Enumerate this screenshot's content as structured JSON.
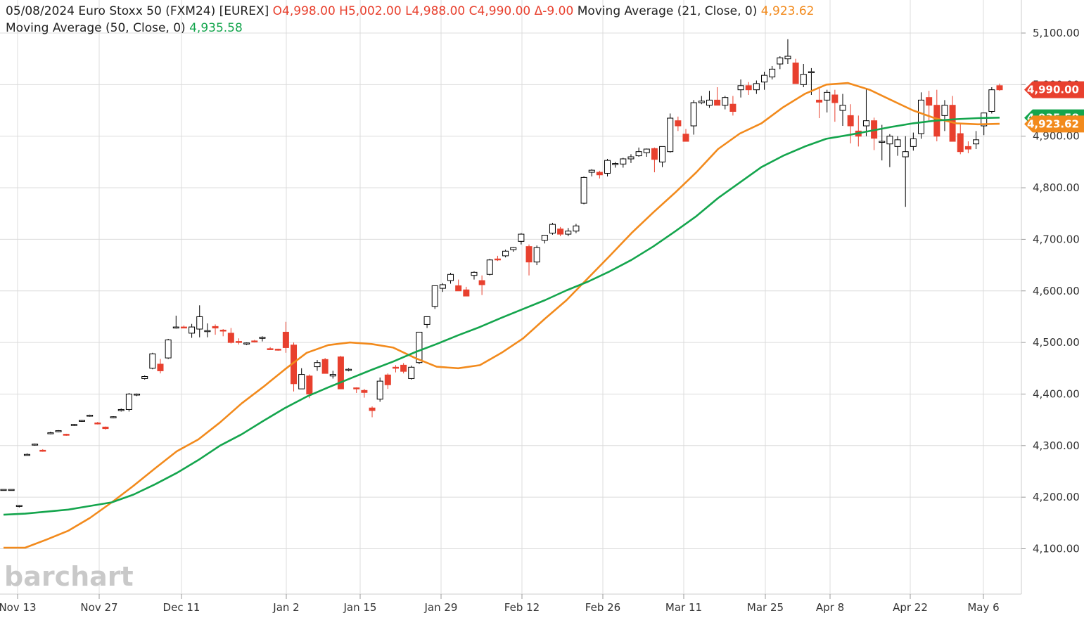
{
  "header": {
    "date": "05/08/2024",
    "instrument": "Euro Stoxx 50 (FXM24) [EUREX]",
    "open": "O4,998.00",
    "high": "H5,002.00",
    "low": "L4,988.00",
    "close": "C4,990.00",
    "change": "Δ-9.00",
    "ma21_label": "Moving Average  (21, Close, 0)",
    "ma21_value": "4,923.62",
    "ma50_label": "Moving Average  (50, Close, 0)",
    "ma50_value": "4,935.58"
  },
  "logo": "barchart",
  "colors": {
    "up_fill": "#ffffff",
    "up_outline": "#000000",
    "down_fill": "#e8402e",
    "ma21": "#f28a1c",
    "ma50": "#14a54d",
    "grid": "#dcdcdc"
  },
  "price_tags": {
    "last": "4,990.00",
    "ma21": "4,923.62",
    "ma50": "4,935.58"
  },
  "chart_data": {
    "type": "candlestick",
    "title": "Euro Stoxx 50 (FXM24) [EUREX]",
    "x_tick_labels": [
      "Nov 13",
      "Nov 27",
      "Dec 11",
      "Jan 2",
      "Jan 15",
      "Jan 29",
      "Feb 12",
      "Feb 26",
      "Mar 11",
      "Mar 25",
      "Apr 8",
      "Apr 22",
      "May 6"
    ],
    "y_tick_labels": [
      "4,100.00",
      "4,200.00",
      "4,300.00",
      "4,400.00",
      "4,500.00",
      "4,600.00",
      "4,700.00",
      "4,800.00",
      "4,900.00",
      "5,000.00",
      "5,100.00"
    ],
    "ylim": [
      4050,
      5120
    ],
    "grid": true,
    "series": [
      {
        "name": "Moving Average  (21, Close, 0)",
        "color": "#f28a1c",
        "values": [
          4102,
          4102,
          4118,
          4135,
          4160,
          4190,
          4222,
          4256,
          4289,
          4312,
          4345,
          4382,
          4414,
          4448,
          4480,
          4495,
          4500,
          4497,
          4490,
          4470,
          4453,
          4450,
          4456,
          4480,
          4508,
          4546,
          4582,
          4625,
          4668,
          4712,
          4752,
          4790,
          4830,
          4875,
          4905,
          4925,
          4956,
          4982,
          5000,
          5003,
          4990,
          4970,
          4950,
          4935,
          4925,
          4923,
          4924
        ]
      },
      {
        "name": "Moving Average  (50, Close, 0)",
        "color": "#14a54d",
        "values": [
          4166,
          4168,
          4172,
          4176,
          4183,
          4190,
          4205,
          4225,
          4247,
          4272,
          4300,
          4322,
          4348,
          4373,
          4395,
          4413,
          4430,
          4447,
          4463,
          4481,
          4497,
          4514,
          4530,
          4548,
          4565,
          4582,
          4601,
          4618,
          4638,
          4660,
          4686,
          4715,
          4745,
          4780,
          4810,
          4840,
          4862,
          4880,
          4895,
          4902,
          4910,
          4918,
          4925,
          4930,
          4933,
          4935,
          4936
        ]
      },
      {
        "name": "candles",
        "values": [
          [
            4215,
            4215,
            4215,
            4215
          ],
          [
            4215,
            4215,
            4215,
            4215
          ],
          [
            4182,
            4185,
            4180,
            4184
          ],
          [
            4282,
            4285,
            4281,
            4283
          ],
          [
            4302,
            4304,
            4300,
            4303
          ],
          [
            4291,
            4293,
            4288,
            4290
          ],
          [
            4324,
            4327,
            4322,
            4325
          ],
          [
            4328,
            4330,
            4326,
            4329
          ],
          [
            4322,
            4323,
            4319,
            4320
          ],
          [
            4340,
            4342,
            4338,
            4341
          ],
          [
            4348,
            4350,
            4346,
            4349
          ],
          [
            4358,
            4360,
            4356,
            4359
          ],
          [
            4344,
            4346,
            4341,
            4342
          ],
          [
            4336,
            4337,
            4331,
            4333
          ],
          [
            4355,
            4357,
            4353,
            4356
          ],
          [
            4368,
            4372,
            4366,
            4370
          ],
          [
            4370,
            4402,
            4366,
            4400
          ],
          [
            4398,
            4401,
            4396,
            4400
          ],
          [
            4430,
            4436,
            4428,
            4434
          ],
          [
            4450,
            4480,
            4448,
            4478
          ],
          [
            4458,
            4468,
            4440,
            4445
          ],
          [
            4470,
            4507,
            4468,
            4505
          ],
          [
            4528,
            4552,
            4527,
            4530
          ],
          [
            4530,
            4533,
            4528,
            4529
          ],
          [
            4518,
            4536,
            4509,
            4530
          ],
          [
            4526,
            4572,
            4510,
            4550
          ],
          [
            4522,
            4537,
            4510,
            4523
          ],
          [
            4531,
            4535,
            4515,
            4528
          ],
          [
            4524,
            4526,
            4512,
            4523
          ],
          [
            4518,
            4528,
            4498,
            4500
          ],
          [
            4502,
            4508,
            4496,
            4500
          ],
          [
            4498,
            4500,
            4495,
            4499
          ],
          [
            4503,
            4505,
            4500,
            4502
          ],
          [
            4508,
            4512,
            4502,
            4510
          ],
          [
            4488,
            4491,
            4486,
            4487
          ],
          [
            4487,
            4488,
            4484,
            4485
          ],
          [
            4520,
            4540,
            4480,
            4490
          ],
          [
            4495,
            4500,
            4405,
            4420
          ],
          [
            4410,
            4450,
            4410,
            4438
          ],
          [
            4435,
            4438,
            4392,
            4400
          ],
          [
            4453,
            4466,
            4445,
            4461
          ],
          [
            4467,
            4470,
            4440,
            4440
          ],
          [
            4435,
            4445,
            4430,
            4438
          ],
          [
            4472,
            4474,
            4440,
            4410
          ],
          [
            4446,
            4450,
            4444,
            4448
          ],
          [
            4412,
            4413,
            4402,
            4410
          ],
          [
            4407,
            4410,
            4393,
            4403
          ],
          [
            4373,
            4376,
            4355,
            4368
          ],
          [
            4390,
            4432,
            4385,
            4425
          ],
          [
            4437,
            4440,
            4410,
            4418
          ],
          [
            4452,
            4456,
            4442,
            4451
          ],
          [
            4456,
            4460,
            4440,
            4444
          ],
          [
            4430,
            4455,
            4428,
            4452
          ],
          [
            4461,
            4520,
            4458,
            4520
          ],
          [
            4535,
            4550,
            4528,
            4550
          ],
          [
            4570,
            4610,
            4565,
            4610
          ],
          [
            4605,
            4615,
            4598,
            4612
          ],
          [
            4620,
            4635,
            4614,
            4632
          ],
          [
            4610,
            4622,
            4605,
            4600
          ],
          [
            4602,
            4608,
            4590,
            4590
          ],
          [
            4630,
            4638,
            4622,
            4636
          ],
          [
            4620,
            4630,
            4592,
            4612
          ],
          [
            4632,
            4662,
            4630,
            4660
          ],
          [
            4662,
            4668,
            4658,
            4660
          ],
          [
            4668,
            4680,
            4665,
            4677
          ],
          [
            4680,
            4685,
            4676,
            4684
          ],
          [
            4696,
            4712,
            4690,
            4710
          ],
          [
            4686,
            4690,
            4630,
            4656
          ],
          [
            4656,
            4688,
            4650,
            4684
          ],
          [
            4698,
            4700,
            4692,
            4708
          ],
          [
            4712,
            4732,
            4709,
            4729
          ],
          [
            4720,
            4724,
            4706,
            4710
          ],
          [
            4710,
            4722,
            4706,
            4716
          ],
          [
            4716,
            4730,
            4712,
            4726
          ],
          [
            4770,
            4822,
            4768,
            4820
          ],
          [
            4830,
            4836,
            4822,
            4834
          ],
          [
            4830,
            4833,
            4818,
            4825
          ],
          [
            4828,
            4856,
            4822,
            4853
          ],
          [
            4846,
            4850,
            4839,
            4847
          ],
          [
            4846,
            4858,
            4839,
            4856
          ],
          [
            4856,
            4865,
            4848,
            4860
          ],
          [
            4862,
            4878,
            4860,
            4870
          ],
          [
            4868,
            4876,
            4860,
            4875
          ],
          [
            4876,
            4878,
            4830,
            4855
          ],
          [
            4850,
            4880,
            4840,
            4880
          ],
          [
            4870,
            4944,
            4868,
            4935
          ],
          [
            4930,
            4938,
            4910,
            4920
          ],
          [
            4904,
            4914,
            4890,
            4890
          ],
          [
            4920,
            4970,
            4903,
            4965
          ],
          [
            4965,
            4978,
            4962,
            4968
          ],
          [
            4960,
            4988,
            4955,
            4970
          ],
          [
            4970,
            4995,
            4965,
            4960
          ],
          [
            4960,
            4978,
            4952,
            4975
          ],
          [
            4962,
            4978,
            4940,
            4948
          ],
          [
            4990,
            5010,
            4975,
            4998
          ],
          [
            4998,
            5005,
            4980,
            4990
          ],
          [
            4990,
            5008,
            4982,
            5002
          ],
          [
            5005,
            5025,
            4990,
            5018
          ],
          [
            5015,
            5036,
            5010,
            5030
          ],
          [
            5040,
            5055,
            5030,
            5052
          ],
          [
            5050,
            5088,
            5040,
            5055
          ],
          [
            5042,
            5050,
            5002,
            5002
          ],
          [
            5000,
            5040,
            4995,
            5020
          ],
          [
            5025,
            5032,
            4980,
            5025
          ],
          [
            4970,
            4995,
            4935,
            4966
          ],
          [
            4970,
            4990,
            4946,
            4985
          ],
          [
            4980,
            4990,
            4928,
            4965
          ],
          [
            4950,
            4982,
            4920,
            4960
          ],
          [
            4940,
            4962,
            4886,
            4920
          ],
          [
            4910,
            4940,
            4880,
            4900
          ],
          [
            4920,
            4992,
            4900,
            4930
          ],
          [
            4930,
            4936,
            4873,
            4896
          ],
          [
            4890,
            4922,
            4853,
            4890
          ],
          [
            4885,
            4904,
            4840,
            4900
          ],
          [
            4880,
            4900,
            4862,
            4893
          ],
          [
            4860,
            4900,
            4763,
            4870
          ],
          [
            4880,
            4907,
            4872,
            4895
          ],
          [
            4905,
            4985,
            4895,
            4970
          ],
          [
            4975,
            4988,
            4930,
            4960
          ],
          [
            4960,
            4990,
            4890,
            4900
          ],
          [
            4940,
            4970,
            4910,
            4960
          ],
          [
            4960,
            4978,
            4900,
            4890
          ],
          [
            4905,
            4925,
            4865,
            4870
          ],
          [
            4880,
            4890,
            4867,
            4875
          ],
          [
            4885,
            4910,
            4875,
            4893
          ],
          [
            4920,
            4935,
            4902,
            4945
          ],
          [
            4948,
            4995,
            4944,
            4990
          ],
          [
            4998,
            5002,
            4988,
            4990
          ]
        ]
      }
    ]
  }
}
